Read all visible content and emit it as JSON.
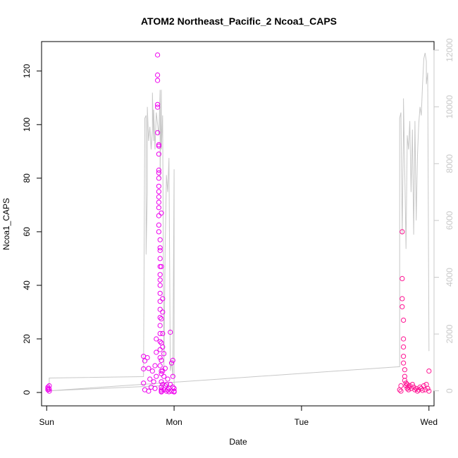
{
  "chart_data": {
    "type": "scatter",
    "title": "ATOM2 Northeast_Pacific_2 Ncoa1_CAPS",
    "xlabel": "Date",
    "ylabel": "Ncoa1_CAPS",
    "x_ticks": [
      "Sun",
      "Mon",
      "Tue",
      "Wed"
    ],
    "x_tick_days": [
      0,
      1,
      2,
      3
    ],
    "xlim": [
      -0.04,
      3.04
    ],
    "ylim": [
      -5,
      131
    ],
    "y_ticks": [
      0,
      20,
      40,
      60,
      80,
      100,
      120
    ],
    "y2lim": [
      -530,
      12300
    ],
    "y2_ticks": [
      0,
      2000,
      4000,
      6000,
      8000,
      10000,
      12000
    ],
    "grid": false,
    "legend": "none",
    "colors": {
      "points_early": "#ee00ee",
      "points_late": "#ff1493",
      "line": "#c8c8c8",
      "axis": "#000000",
      "right_axis": "#c8c8c8"
    },
    "series": [
      {
        "kind": "points",
        "axis": "left",
        "x": [
          0.01,
          0.01,
          0.01,
          0.02,
          0.02,
          0.02,
          0.76,
          0.76,
          0.76,
          0.77,
          0.77,
          0.79,
          0.8,
          0.8,
          0.81,
          0.82,
          0.83,
          0.84,
          0.85,
          0.85,
          0.86,
          0.86,
          0.86,
          0.87,
          0.87,
          0.87,
          0.87,
          0.87,
          0.87,
          0.88,
          0.88,
          0.88,
          0.88,
          0.88,
          0.88,
          0.88,
          0.88,
          0.88,
          0.88,
          0.88,
          0.88,
          0.88,
          0.88,
          0.89,
          0.89,
          0.89,
          0.89,
          0.89,
          0.89,
          0.89,
          0.89,
          0.89,
          0.89,
          0.89,
          0.89,
          0.89,
          0.89,
          0.89,
          0.89,
          0.89,
          0.89,
          0.9,
          0.9,
          0.9,
          0.9,
          0.9,
          0.9,
          0.9,
          0.9,
          0.9,
          0.9,
          0.9,
          0.9,
          0.91,
          0.91,
          0.91,
          0.91,
          0.91,
          0.91,
          0.92,
          0.92,
          0.92,
          0.93,
          0.93,
          0.94,
          0.94,
          0.95,
          0.95,
          0.96,
          0.96,
          0.97,
          0.97,
          0.98,
          0.98,
          0.99,
          0.99,
          0.99,
          1.0,
          1.0,
          1.0,
          2.77,
          2.78,
          2.78,
          2.79,
          2.79,
          2.79,
          2.79,
          2.8,
          2.8,
          2.8,
          2.8,
          2.8,
          2.81,
          2.81,
          2.81,
          2.82,
          2.82,
          2.83,
          2.83,
          2.84,
          2.84,
          2.85,
          2.86,
          2.87,
          2.88,
          2.89,
          2.9,
          2.91,
          2.92,
          2.93,
          2.94,
          2.95,
          2.96,
          2.97,
          2.98,
          2.99,
          3.0,
          3.0
        ],
        "y": [
          1.0,
          2.0,
          1.5,
          0.5,
          2.5,
          1.2,
          13.5,
          8.8,
          3.5,
          11.8,
          1.0,
          13.0,
          9.0,
          0.5,
          5.0,
          2.0,
          8.0,
          4.0,
          10.0,
          1.5,
          20.0,
          15.0,
          6.0,
          126.0,
          118.5,
          116.5,
          107.5,
          106.5,
          97.0,
          92.5,
          92.0,
          89.0,
          83.0,
          82.0,
          80.0,
          77.0,
          75.0,
          73.0,
          71.0,
          69.0,
          66.0,
          62.5,
          60.0,
          57.0,
          54.0,
          53.0,
          50.0,
          47.0,
          44.0,
          42.0,
          40.0,
          37.0,
          34.0,
          31.0,
          28.0,
          25.0,
          22.0,
          19.0,
          16.0,
          13.0,
          10.0,
          8.0,
          67.0,
          47.0,
          27.5,
          18.5,
          12.0,
          7.0,
          4.0,
          2.0,
          1.0,
          0.5,
          0.2,
          35.0,
          30.0,
          22.0,
          17.0,
          8.0,
          3.0,
          14.5,
          6.0,
          1.0,
          9.0,
          2.5,
          3.0,
          0.5,
          5.0,
          1.0,
          1.5,
          0.3,
          22.5,
          3.0,
          11.0,
          0.5,
          12.0,
          6.0,
          2.0,
          0.5,
          1.5,
          0.2,
          1.0,
          2.5,
          0.5,
          60.0,
          42.5,
          35.0,
          32.0,
          27.0,
          20.0,
          17.0,
          13.5,
          11.0,
          8.5,
          6.0,
          4.5,
          3.5,
          2.5,
          1.5,
          3.0,
          2.0,
          1.0,
          2.5,
          1.5,
          3.0,
          2.0,
          1.0,
          1.5,
          0.5,
          1.0,
          2.0,
          1.5,
          0.8,
          2.5,
          1.0,
          3.0,
          1.5,
          8.0,
          0.5
        ]
      },
      {
        "kind": "line",
        "axis": "right",
        "x": [
          0.02,
          0.02,
          0.76,
          0.77,
          0.78,
          0.78,
          0.79,
          0.79,
          0.8,
          0.81,
          0.82,
          0.83,
          0.83,
          0.84,
          0.84,
          0.85,
          0.86,
          0.88,
          0.89,
          0.89,
          0.9,
          0.9,
          0.91,
          0.92,
          0.93,
          0.94,
          0.95,
          0.96,
          0.97,
          0.98,
          0.99,
          1.0,
          1.0,
          0.02,
          2.77,
          2.77,
          2.78,
          2.79,
          2.8,
          2.8,
          2.81,
          2.82,
          2.83,
          2.84,
          2.85,
          2.86,
          2.87,
          2.88,
          2.89,
          2.9,
          2.91,
          2.92,
          2.93,
          2.94,
          2.95,
          2.96,
          2.97,
          2.98,
          2.98,
          2.99,
          2.99,
          3.0
        ],
        "y": [
          0,
          450,
          500,
          9600,
          9700,
          4800,
          7000,
          10000,
          8800,
          9300,
          8500,
          9200,
          10500,
          8800,
          9900,
          8500,
          9800,
          9000,
          10600,
          7500,
          10600,
          8500,
          9700,
          700,
          5000,
          7600,
          7000,
          8200,
          700,
          1000,
          500,
          7800,
          200,
          0,
          850,
          9600,
          9800,
          5500,
          9200,
          10300,
          7800,
          5000,
          9000,
          8500,
          9500,
          7000,
          9200,
          5500,
          9500,
          6000,
          8300,
          9400,
          10000,
          9700,
          10800,
          11700,
          11900,
          11600,
          10800,
          11200,
          11100,
          1400
        ]
      }
    ]
  }
}
